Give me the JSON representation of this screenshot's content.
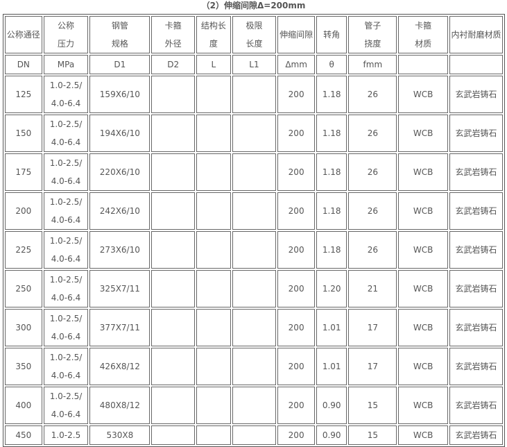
{
  "title": "（2）伸缩间隙Δ=200mm",
  "headers": [
    "公称通径",
    [
      "公称",
      "压力"
    ],
    [
      "钢管",
      "规格"
    ],
    [
      "卡箍",
      "外径"
    ],
    [
      "结构长",
      "度"
    ],
    [
      "极限",
      "长度"
    ],
    "伸缩间隙",
    "转角",
    [
      "管子",
      "挠度"
    ],
    [
      "卡箍",
      "材质"
    ],
    "内衬耐磨材质"
  ],
  "units": [
    "DN",
    "MPa",
    "D1",
    "D2",
    "L",
    "L1",
    "Δmm",
    "θ",
    "fmm",
    "",
    ""
  ],
  "rows": [
    [
      "125",
      [
        "1.0-2.5/",
        "4.0-6.4"
      ],
      "159X6/10",
      "",
      "",
      "",
      "200",
      "1.18",
      "26",
      "WCB",
      "玄武岩铸石"
    ],
    [
      "150",
      [
        "1.0-2.5/",
        "4.0-6.4"
      ],
      "194X6/10",
      "",
      "",
      "",
      "200",
      "1.18",
      "26",
      "WCB",
      "玄武岩铸石"
    ],
    [
      "175",
      [
        "1.0-2.5/",
        "4.0-6.4"
      ],
      "220X6/10",
      "",
      "",
      "",
      "200",
      "1.18",
      "26",
      "WCB",
      "玄武岩铸石"
    ],
    [
      "200",
      [
        "1.0-2.5/",
        "4.0-6.4"
      ],
      "242X6/10",
      "",
      "",
      "",
      "200",
      "1.18",
      "26",
      "WCB",
      "玄武岩铸石"
    ],
    [
      "225",
      [
        "1.0-2.5/",
        "4.0-6.4"
      ],
      "273X6/10",
      "",
      "",
      "",
      "200",
      "1.18",
      "26",
      "WCB",
      "玄武岩铸石"
    ],
    [
      "250",
      [
        "1.0-2.5/",
        "4.0-6.4"
      ],
      "325X7/11",
      "",
      "",
      "",
      "200",
      "1.20",
      "21",
      "WCB",
      "玄武岩铸石"
    ],
    [
      "300",
      [
        "1.0-2.5/",
        "4.0-6.4"
      ],
      "377X7/11",
      "",
      "",
      "",
      "200",
      "1.01",
      "17",
      "WCB",
      "玄武岩铸石"
    ],
    [
      "350",
      [
        "1.0-2.5/",
        "4.0-6.4"
      ],
      "426X8/12",
      "",
      "",
      "",
      "200",
      "1.01",
      "17",
      "WCB",
      "玄武岩铸石"
    ],
    [
      "400",
      [
        "1.0-2.5/",
        "4.0-6.4"
      ],
      "480X8/12",
      "",
      "",
      "",
      "200",
      "0.90",
      "15",
      "WCB",
      "玄武岩铸石"
    ],
    [
      "450",
      "1.0-2.5",
      "530X8",
      "",
      "",
      "",
      "200",
      "0.90",
      "15",
      "WCB",
      "玄武岩铸石"
    ]
  ]
}
